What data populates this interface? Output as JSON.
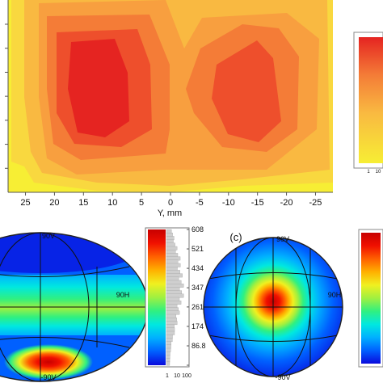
{
  "chart_data": [
    {
      "type": "heatmap",
      "id": "contour-map",
      "xlabel": "Y, mm",
      "xticks": [
        "25",
        "20",
        "15",
        "10",
        "5",
        "0",
        "-5",
        "-10",
        "-15",
        "-20",
        "-25"
      ],
      "xlim": [
        28,
        -28
      ],
      "ylim": [
        0,
        1
      ],
      "ytick_count": 7,
      "grid": false,
      "levels": [
        "#f7ee34",
        "#f9d83f",
        "#f9b941",
        "#f89f3f",
        "#f47c37",
        "#ee4f2c",
        "#e52421"
      ],
      "hotspots": [
        {
          "center_y_mm": 12,
          "peak_level": 6
        },
        {
          "center_y_mm": -14,
          "peak_level": 5
        }
      ]
    },
    {
      "type": "heatmap",
      "id": "angular-distribution-left",
      "panel_label": "",
      "angle_labels": {
        "top": "90V",
        "right": "90H",
        "bottom": "-90V"
      },
      "peak_region": "bottom",
      "bright_band": "horizontal equator",
      "colormap": [
        "#0a0adc",
        "#0060ff",
        "#00b0ff",
        "#00e8e0",
        "#30f080",
        "#a0f040",
        "#f0f020",
        "#ffb000",
        "#ff6000",
        "#f01000",
        "#c80000"
      ]
    },
    {
      "type": "histogram",
      "id": "intensity-scale-b",
      "yticks": [
        "608",
        "521",
        "434",
        "347",
        "261",
        "174",
        "86.8",
        "0"
      ],
      "ylim": [
        0,
        608
      ],
      "xticks": [
        "1",
        "10",
        "100"
      ],
      "xscale": "log"
    },
    {
      "type": "heatmap",
      "id": "angular-distribution-c",
      "panel_label": "(c)",
      "angle_labels": {
        "top": "90V",
        "right": "90H",
        "bottom": "-90V"
      },
      "peak_region": "center",
      "colormap": [
        "#0a0adc",
        "#0060ff",
        "#00b0ff",
        "#00e8e0",
        "#30f080",
        "#a0f040",
        "#f0f020",
        "#ffb000",
        "#ff6000",
        "#f01000",
        "#c80000"
      ]
    }
  ],
  "right_colorbar_top": {
    "xticks": [
      "1",
      "10"
    ]
  }
}
